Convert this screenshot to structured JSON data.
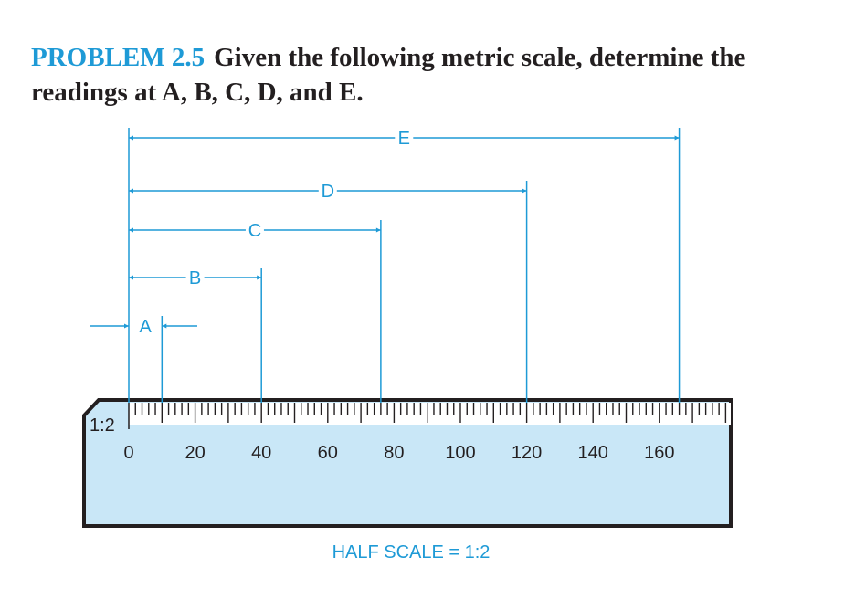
{
  "problem": {
    "label": "PROBLEM 2.5",
    "text": "Given the following metric scale, determine the readings at A, B, C, D, and E."
  },
  "scale": {
    "ratio_label": "1:2",
    "numbers": [
      "0",
      "20",
      "40",
      "60",
      "80",
      "100",
      "120",
      "140",
      "160"
    ],
    "caption": "HALF SCALE = 1:2"
  },
  "dimensions": [
    {
      "label": "A",
      "end_value": 10
    },
    {
      "label": "B",
      "end_value": 40
    },
    {
      "label": "C",
      "end_value": 76
    },
    {
      "label": "D",
      "end_value": 120
    },
    {
      "label": "E",
      "end_value": 166
    }
  ],
  "colors": {
    "accent": "#1e9ad6",
    "scale_fill": "#c9e7f7",
    "ink": "#231f20"
  }
}
